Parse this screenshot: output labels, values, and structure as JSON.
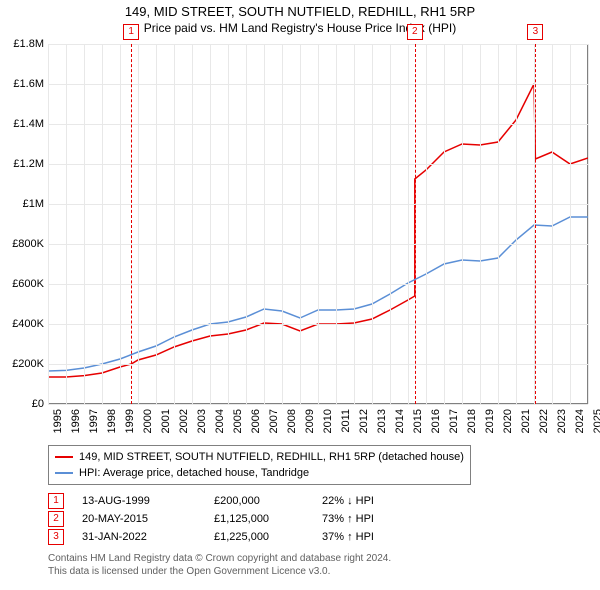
{
  "title": "149, MID STREET, SOUTH NUTFIELD, REDHILL, RH1 5RP",
  "subtitle": "Price paid vs. HM Land Registry's House Price Index (HPI)",
  "chart": {
    "type": "line",
    "background_color": "#ffffff",
    "border_color": "#808080",
    "grid_color": "#e8e8e8",
    "title_fontsize": 13,
    "label_fontsize": 11,
    "x": {
      "min": 1995,
      "max": 2025,
      "ticks": [
        1995,
        1996,
        1997,
        1998,
        1999,
        2000,
        2001,
        2002,
        2003,
        2004,
        2005,
        2006,
        2007,
        2008,
        2009,
        2010,
        2011,
        2012,
        2013,
        2014,
        2015,
        2016,
        2017,
        2018,
        2019,
        2020,
        2021,
        2022,
        2023,
        2024,
        2025
      ]
    },
    "y": {
      "min": 0,
      "max": 1800000,
      "tick_step": 200000,
      "tick_labels": [
        "£0",
        "£200K",
        "£400K",
        "£600K",
        "£800K",
        "£1M",
        "£1.2M",
        "£1.4M",
        "£1.6M",
        "£1.8M"
      ]
    },
    "series": [
      {
        "name": "149, MID STREET, SOUTH NUTFIELD, REDHILL, RH1 5RP (detached house)",
        "color": "#e60000",
        "line_width": 1.5,
        "data": [
          [
            1995,
            135000
          ],
          [
            1996,
            135000
          ],
          [
            1997,
            142000
          ],
          [
            1998,
            155000
          ],
          [
            1999,
            185000
          ],
          [
            1999.62,
            200000
          ],
          [
            2000,
            220000
          ],
          [
            2001,
            245000
          ],
          [
            2002,
            285000
          ],
          [
            2003,
            315000
          ],
          [
            2004,
            340000
          ],
          [
            2005,
            350000
          ],
          [
            2006,
            370000
          ],
          [
            2007,
            405000
          ],
          [
            2008,
            400000
          ],
          [
            2009,
            365000
          ],
          [
            2010,
            400000
          ],
          [
            2011,
            400000
          ],
          [
            2012,
            405000
          ],
          [
            2013,
            425000
          ],
          [
            2014,
            470000
          ],
          [
            2015,
            520000
          ],
          [
            2015.38,
            540000
          ],
          [
            2015.38,
            1125000
          ],
          [
            2016,
            1170000
          ],
          [
            2017,
            1260000
          ],
          [
            2018,
            1300000
          ],
          [
            2019,
            1295000
          ],
          [
            2020,
            1310000
          ],
          [
            2021,
            1420000
          ],
          [
            2022,
            1600000
          ],
          [
            2022.08,
            1225000
          ],
          [
            2023,
            1260000
          ],
          [
            2024,
            1200000
          ],
          [
            2025,
            1230000
          ]
        ]
      },
      {
        "name": "HPI: Average price, detached house, Tandridge",
        "color": "#5b8fd6",
        "line_width": 1.5,
        "data": [
          [
            1995,
            165000
          ],
          [
            1996,
            168000
          ],
          [
            1997,
            180000
          ],
          [
            1998,
            200000
          ],
          [
            1999,
            225000
          ],
          [
            2000,
            260000
          ],
          [
            2001,
            290000
          ],
          [
            2002,
            335000
          ],
          [
            2003,
            370000
          ],
          [
            2004,
            400000
          ],
          [
            2005,
            410000
          ],
          [
            2006,
            435000
          ],
          [
            2007,
            475000
          ],
          [
            2008,
            465000
          ],
          [
            2009,
            430000
          ],
          [
            2010,
            470000
          ],
          [
            2011,
            470000
          ],
          [
            2012,
            475000
          ],
          [
            2013,
            500000
          ],
          [
            2014,
            550000
          ],
          [
            2015,
            605000
          ],
          [
            2016,
            650000
          ],
          [
            2017,
            700000
          ],
          [
            2018,
            720000
          ],
          [
            2019,
            715000
          ],
          [
            2020,
            730000
          ],
          [
            2021,
            820000
          ],
          [
            2022,
            895000
          ],
          [
            2023,
            890000
          ],
          [
            2024,
            935000
          ],
          [
            2025,
            935000
          ]
        ]
      }
    ],
    "markers": [
      {
        "num": "1",
        "x": 1999.62,
        "color": "#e60000"
      },
      {
        "num": "2",
        "x": 2015.38,
        "color": "#e60000"
      },
      {
        "num": "3",
        "x": 2022.08,
        "color": "#e60000"
      }
    ]
  },
  "legend": {
    "items": [
      {
        "color": "#e60000",
        "label": "149, MID STREET, SOUTH NUTFIELD, REDHILL, RH1 5RP (detached house)"
      },
      {
        "color": "#5b8fd6",
        "label": "HPI: Average price, detached house, Tandridge"
      }
    ]
  },
  "annotations": [
    {
      "num": "1",
      "color": "#e60000",
      "date": "13-AUG-1999",
      "price": "£200,000",
      "pct": "22% ↓ HPI"
    },
    {
      "num": "2",
      "color": "#e60000",
      "date": "20-MAY-2015",
      "price": "£1,125,000",
      "pct": "73% ↑ HPI"
    },
    {
      "num": "3",
      "color": "#e60000",
      "date": "31-JAN-2022",
      "price": "£1,225,000",
      "pct": "37% ↑ HPI"
    }
  ],
  "footer": {
    "line1": "Contains HM Land Registry data © Crown copyright and database right 2024.",
    "line2": "This data is licensed under the Open Government Licence v3.0."
  }
}
